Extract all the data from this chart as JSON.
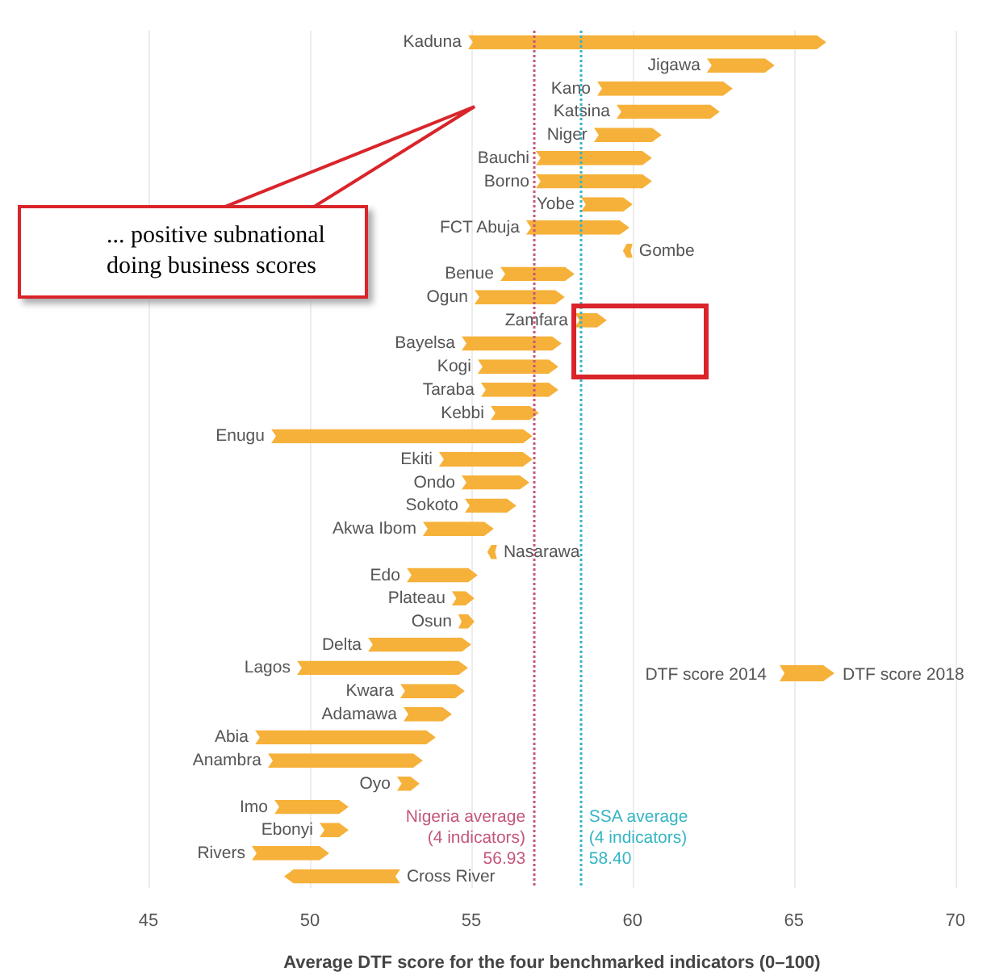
{
  "chart_data": {
    "type": "bar",
    "orientation": "horizontal",
    "xlabel": "Average DTF score for the four benchmarked indicators (0–100)",
    "categories": [
      "Kaduna",
      "Jigawa",
      "Kano",
      "Katsina",
      "Niger",
      "Bauchi",
      "Borno",
      "Yobe",
      "FCT Abuja",
      "Gombe",
      "Benue",
      "Ogun",
      "Zamfara",
      "Bayelsa",
      "Kogi",
      "Taraba",
      "Kebbi",
      "Enugu",
      "Ekiti",
      "Ondo",
      "Sokoto",
      "Akwa Ibom",
      "Nasarawa",
      "Edo",
      "Plateau",
      "Osun",
      "Delta",
      "Lagos",
      "Kwara",
      "Adamawa",
      "Abia",
      "Anambra",
      "Oyo",
      "Imo",
      "Ebonyi",
      "Rivers",
      "Cross River"
    ],
    "base": [
      54.9,
      62.3,
      58.9,
      59.5,
      58.8,
      57.0,
      57.0,
      58.4,
      56.7,
      60.0,
      55.9,
      55.1,
      58.2,
      54.7,
      55.2,
      55.3,
      55.6,
      48.8,
      54.0,
      54.7,
      54.8,
      53.5,
      55.8,
      53.0,
      54.4,
      54.6,
      51.8,
      49.6,
      52.8,
      52.9,
      48.3,
      48.7,
      52.7,
      48.9,
      50.3,
      48.2,
      52.8
    ],
    "values": [
      11.1,
      2.1,
      4.2,
      3.2,
      2.1,
      3.6,
      3.6,
      1.6,
      3.2,
      -0.3,
      2.3,
      2.8,
      1.0,
      3.1,
      2.5,
      2.4,
      1.5,
      8.1,
      2.9,
      2.1,
      1.6,
      2.2,
      -0.3,
      2.2,
      0.7,
      0.5,
      3.2,
      5.3,
      2.0,
      1.5,
      5.6,
      4.8,
      0.7,
      2.3,
      0.9,
      2.4,
      -3.6
    ],
    "color": "#f6b13a",
    "xlim": [
      45,
      70
    ],
    "xticks": [
      45,
      50,
      55,
      60,
      65,
      70
    ],
    "grid": "x",
    "tick_labels": "x",
    "ref_lines": [
      {
        "axis": "x",
        "value": 56.93,
        "label": "Nigeria average\n(4 indicators)\n56.93",
        "color": "#c4577a",
        "line_style": "dotted"
      },
      {
        "axis": "x",
        "value": 58.4,
        "label": "SSA average\n(4 indicators)\n58.40",
        "color": "#35b5c4",
        "line_style": "dotted"
      }
    ],
    "annotations": [
      "... positive subnational doing business scores",
      "DTF score 2014",
      "DTF score 2018"
    ]
  }
}
